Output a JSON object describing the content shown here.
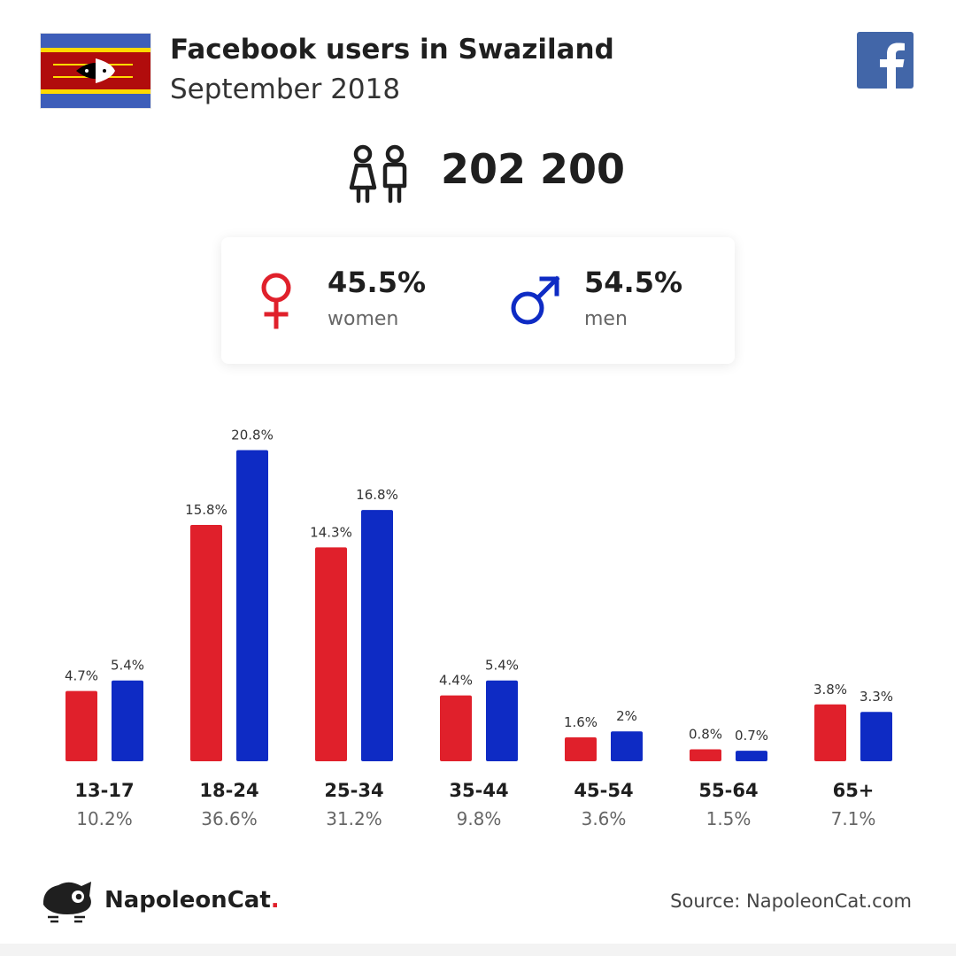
{
  "header": {
    "title": "Facebook users in Swaziland",
    "subtitle": "September 2018"
  },
  "total": {
    "value": "202 200"
  },
  "gender": {
    "women": {
      "pct": "45.5%",
      "label": "women"
    },
    "men": {
      "pct": "54.5%",
      "label": "men"
    }
  },
  "colors": {
    "women": "#e0202b",
    "men": "#0e2bc4",
    "facebook": "#4266a8"
  },
  "icons": [
    "swaziland-flag",
    "users-icon",
    "female-icon",
    "male-icon",
    "facebook-logo-icon",
    "napoleoncat-logo-icon"
  ],
  "chart_data": {
    "type": "bar",
    "categories": [
      "13-17",
      "18-24",
      "25-34",
      "35-44",
      "45-54",
      "55-64",
      "65+"
    ],
    "category_totals": [
      "10.2%",
      "36.6%",
      "31.2%",
      "9.8%",
      "3.6%",
      "1.5%",
      "7.1%"
    ],
    "series": [
      {
        "values": [
          4.7,
          15.8,
          14.3,
          4.4,
          1.6,
          0.8,
          3.8
        ],
        "labels": [
          "4.7%",
          "15.8%",
          "14.3%",
          "4.4%",
          "1.6%",
          "0.8%",
          "3.8%"
        ]
      },
      {
        "values": [
          5.4,
          20.8,
          16.8,
          5.4,
          2.0,
          0.7,
          3.3
        ],
        "labels": [
          "5.4%",
          "20.8%",
          "16.8%",
          "5.4%",
          "2%",
          "0.7%",
          "3.3%"
        ]
      }
    ],
    "title": "",
    "xlabel": "",
    "ylabel": "",
    "grid": false
  },
  "footer": {
    "brand": "NapoleonCat",
    "brand_dot": ".",
    "source": "Source: NapoleonCat.com"
  }
}
